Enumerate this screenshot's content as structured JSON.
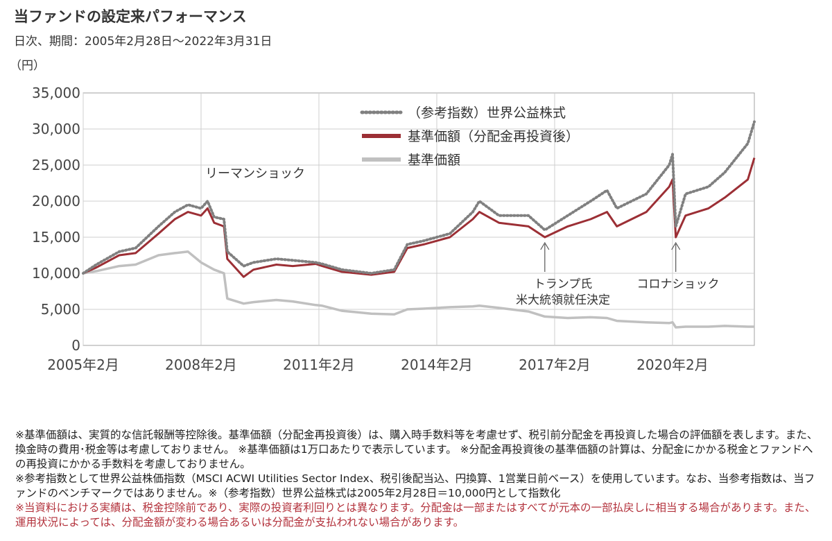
{
  "header": {
    "title": "当ファンドの設定来パフォーマンス",
    "subtitle": "日次、期間：2005年2月28日～2022年3月31日"
  },
  "chart_data": {
    "type": "line",
    "title": "",
    "ylabel": "（円）",
    "xlabel": "",
    "ylim": [
      0,
      35000
    ],
    "yticks": [
      "0",
      "5,000",
      "10,000",
      "15,000",
      "20,000",
      "25,000",
      "30,000",
      "35,000"
    ],
    "xticks": [
      "2005年2月",
      "2008年2月",
      "2011年2月",
      "2014年2月",
      "2017年2月",
      "2020年2月"
    ],
    "xrange": [
      "2005-02",
      "2022-03"
    ],
    "grid": true,
    "legend": "top-right",
    "series": [
      {
        "name": "（参考指数）世界公益株式",
        "style": "dotted",
        "color": "#808080",
        "x": [
          "2005-02",
          "2005-06",
          "2006-01",
          "2006-06",
          "2007-01",
          "2007-06",
          "2007-10",
          "2008-02",
          "2008-04",
          "2008-06",
          "2008-09",
          "2008-10",
          "2009-03",
          "2009-06",
          "2010-01",
          "2010-06",
          "2011-01",
          "2011-03",
          "2011-09",
          "2012-06",
          "2013-01",
          "2013-05",
          "2013-10",
          "2014-06",
          "2015-01",
          "2015-03",
          "2015-09",
          "2016-06",
          "2016-11",
          "2017-06",
          "2018-01",
          "2018-06",
          "2018-09",
          "2019-06",
          "2020-01",
          "2020-02",
          "2020-03",
          "2020-06",
          "2021-01",
          "2021-06",
          "2022-01",
          "2022-03"
        ],
        "values": [
          10000,
          11200,
          13000,
          13500,
          16500,
          18500,
          19500,
          19000,
          20000,
          17800,
          17500,
          13000,
          11000,
          11500,
          12000,
          11800,
          11500,
          11300,
          10500,
          10000,
          10500,
          14000,
          14500,
          15500,
          18500,
          20000,
          18000,
          18000,
          16000,
          18000,
          20000,
          21500,
          19000,
          21000,
          25000,
          26500,
          16500,
          21000,
          22000,
          24000,
          28000,
          31000
        ]
      },
      {
        "name": "基準価額（分配金再投資後）",
        "style": "solid",
        "color": "#9c2f35",
        "x": [
          "2005-02",
          "2005-06",
          "2006-01",
          "2006-06",
          "2007-01",
          "2007-06",
          "2007-10",
          "2008-02",
          "2008-04",
          "2008-06",
          "2008-09",
          "2008-10",
          "2009-03",
          "2009-06",
          "2010-01",
          "2010-06",
          "2011-01",
          "2011-03",
          "2011-09",
          "2012-06",
          "2013-01",
          "2013-05",
          "2013-10",
          "2014-06",
          "2015-01",
          "2015-03",
          "2015-09",
          "2016-06",
          "2016-11",
          "2017-06",
          "2018-01",
          "2018-06",
          "2018-09",
          "2019-06",
          "2020-01",
          "2020-02",
          "2020-03",
          "2020-06",
          "2021-01",
          "2021-06",
          "2022-01",
          "2022-03"
        ],
        "values": [
          10000,
          10800,
          12500,
          12800,
          15500,
          17500,
          18500,
          18000,
          19000,
          17000,
          16500,
          12000,
          9500,
          10500,
          11200,
          11000,
          11300,
          11000,
          10200,
          9800,
          10200,
          13500,
          14000,
          15000,
          17500,
          18500,
          17000,
          16500,
          15000,
          16500,
          17500,
          18500,
          16500,
          18500,
          22000,
          23000,
          15000,
          18000,
          19000,
          20500,
          23000,
          26000
        ]
      },
      {
        "name": "基準価額",
        "style": "solid",
        "color": "#c0c0c0",
        "x": [
          "2005-02",
          "2005-06",
          "2006-01",
          "2006-06",
          "2007-01",
          "2007-06",
          "2007-10",
          "2008-02",
          "2008-04",
          "2008-06",
          "2008-09",
          "2008-10",
          "2009-03",
          "2009-06",
          "2010-01",
          "2010-06",
          "2011-01",
          "2011-03",
          "2011-09",
          "2012-06",
          "2013-01",
          "2013-05",
          "2013-10",
          "2014-06",
          "2015-01",
          "2015-03",
          "2015-09",
          "2016-06",
          "2016-11",
          "2017-06",
          "2018-01",
          "2018-06",
          "2018-09",
          "2019-06",
          "2020-01",
          "2020-02",
          "2020-03",
          "2020-06",
          "2021-01",
          "2021-06",
          "2022-01",
          "2022-03"
        ],
        "values": [
          10000,
          10300,
          11000,
          11200,
          12500,
          12800,
          13000,
          11500,
          11000,
          10500,
          10000,
          6500,
          5800,
          6000,
          6300,
          6100,
          5600,
          5500,
          4800,
          4400,
          4300,
          5000,
          5100,
          5300,
          5400,
          5500,
          5200,
          4700,
          4000,
          3800,
          3900,
          3800,
          3400,
          3200,
          3100,
          3200,
          2500,
          2600,
          2600,
          2700,
          2600,
          2600
        ]
      }
    ],
    "annotations": [
      {
        "text": "リーマンショック"
      },
      {
        "text": "トランプ氏"
      },
      {
        "text": "米大統領就任決定"
      },
      {
        "text": "コロナショック"
      }
    ]
  },
  "notes": [
    {
      "text": "※基準価額は、実質的な信託報酬等控除後。基準価額（分配金再投資後）は、購入時手数料等を考慮せず、税引前分配金を再投資した場合の評価額を表します。また、換金時の費用･税金等は考慮しておりません。 ※基準価額は1万口あたりで表示しています。 ※分配金再投資後の基準価額の計算は、分配金にかかる税金とファンドへの再投資にかかる手数料を考慮しておりません。",
      "color": "#222222"
    },
    {
      "text": "※参考指数として世界公益株価指数（MSCI ACWI Utilities Sector Index、税引後配当込、円換算、1営業日前ベース）を使用しています。なお、当参考指数は、当ファンドのベンチマークではありません。※（参考指数）世界公益株式は2005年2月28日＝10,000円として指数化",
      "color": "#222222"
    },
    {
      "text": "※当資料における実績は、税金控除前であり、実際の投資者利回りとは異なります。分配金は一部またはすべてが元本の一部払戻しに相当する場合があります。また、運用状況によっては、分配金額が変わる場合あるいは分配金が支払われない場合があります。",
      "color": "#b3323c"
    }
  ]
}
